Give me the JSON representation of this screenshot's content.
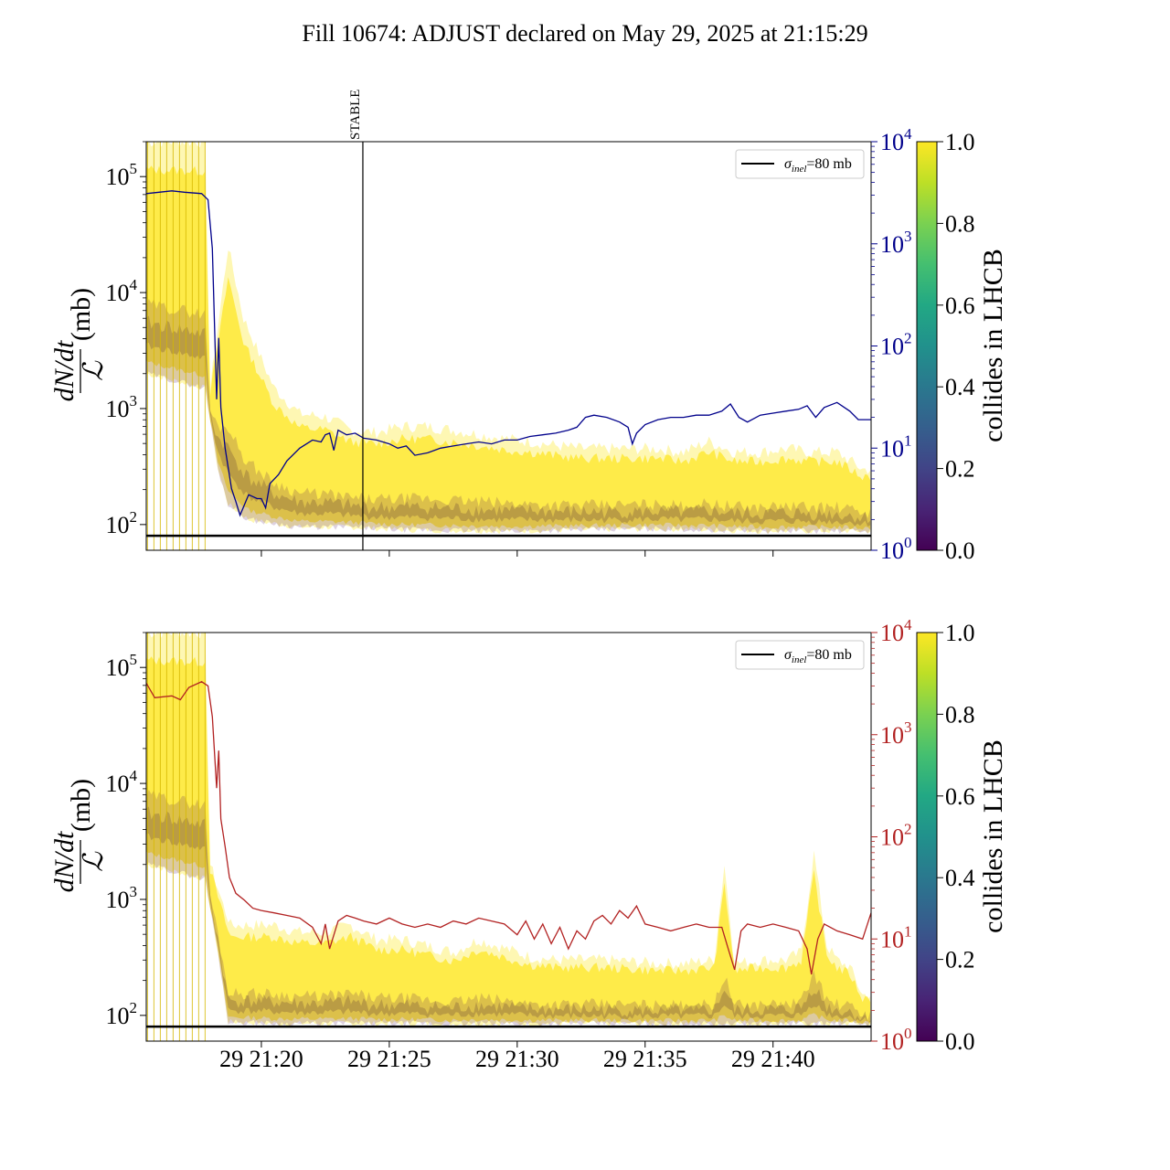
{
  "title": "Fill 10674: ADJUST declared on May 29, 2025 at 21:15:29",
  "chart_data": [
    {
      "type": "line",
      "panel": "top",
      "ylabel": "dN/dt / ℒ (mb)",
      "yscale": "log",
      "ylim": [
        60,
        200000
      ],
      "y_ticks": [
        {
          "exp": "2"
        },
        {
          "exp": "3"
        },
        {
          "exp": "4"
        },
        {
          "exp": "5"
        }
      ],
      "xlim": [
        "21:15:30",
        "21:43:50"
      ],
      "x_tick_minutes": [
        "21:20",
        "21:25",
        "21:30",
        "21:35",
        "21:40"
      ],
      "right_axis": {
        "scale": "log",
        "ylim": [
          1,
          10000
        ],
        "color": "#00008b",
        "ticks": [
          {
            "exp": "0"
          },
          {
            "exp": "1"
          },
          {
            "exp": "2"
          },
          {
            "exp": "3"
          },
          {
            "exp": "4"
          }
        ]
      },
      "vline": {
        "label": "STABLE",
        "time": "21:23:58"
      },
      "hline": {
        "value": 80
      },
      "legend": {
        "position": "upper right",
        "entry_symbol": "σ",
        "entry_sub": "inel",
        "entry_rest": "=80 mb"
      },
      "right_series": {
        "color": "#00008b",
        "points": [
          [
            "21:15:30",
            3100
          ],
          [
            "21:16:00",
            3200
          ],
          [
            "21:16:30",
            3300
          ],
          [
            "21:17:00",
            3200
          ],
          [
            "21:17:40",
            3100
          ],
          [
            "21:17:55",
            2700
          ],
          [
            "21:18:05",
            900
          ],
          [
            "21:18:15",
            30
          ],
          [
            "21:18:20",
            120
          ],
          [
            "21:18:25",
            25
          ],
          [
            "21:18:35",
            10
          ],
          [
            "21:18:50",
            4
          ],
          [
            "21:19:00",
            3
          ],
          [
            "21:19:10",
            2.2
          ],
          [
            "21:19:30",
            3.5
          ],
          [
            "21:19:50",
            3.2
          ],
          [
            "21:20:00",
            3.2
          ],
          [
            "21:20:10",
            2.6
          ],
          [
            "21:20:20",
            4.5
          ],
          [
            "21:20:40",
            5.5
          ],
          [
            "21:21:00",
            7.5
          ],
          [
            "21:21:30",
            10
          ],
          [
            "21:22:00",
            12
          ],
          [
            "21:22:20",
            11.5
          ],
          [
            "21:22:30",
            13.5
          ],
          [
            "21:22:40",
            14
          ],
          [
            "21:22:50",
            9.5
          ],
          [
            "21:23:00",
            15
          ],
          [
            "21:23:20",
            13.5
          ],
          [
            "21:23:40",
            14
          ],
          [
            "21:24:00",
            12.5
          ],
          [
            "21:24:30",
            12
          ],
          [
            "21:25:00",
            11
          ],
          [
            "21:25:20",
            10
          ],
          [
            "21:25:40",
            10.5
          ],
          [
            "21:26:00",
            8.5
          ],
          [
            "21:26:30",
            9
          ],
          [
            "21:27:00",
            10
          ],
          [
            "21:27:30",
            10.5
          ],
          [
            "21:28:00",
            11
          ],
          [
            "21:28:30",
            11.5
          ],
          [
            "21:29:00",
            11
          ],
          [
            "21:29:30",
            12
          ],
          [
            "21:30:00",
            12
          ],
          [
            "21:30:30",
            13
          ],
          [
            "21:31:00",
            13.5
          ],
          [
            "21:31:30",
            14
          ],
          [
            "21:32:00",
            15
          ],
          [
            "21:32:20",
            16
          ],
          [
            "21:32:40",
            20
          ],
          [
            "21:33:00",
            21
          ],
          [
            "21:33:30",
            20
          ],
          [
            "21:34:00",
            18
          ],
          [
            "21:34:20",
            16
          ],
          [
            "21:34:30",
            11
          ],
          [
            "21:34:40",
            14
          ],
          [
            "21:35:00",
            17
          ],
          [
            "21:35:30",
            19
          ],
          [
            "21:36:00",
            20
          ],
          [
            "21:36:30",
            20
          ],
          [
            "21:37:00",
            21
          ],
          [
            "21:37:30",
            21
          ],
          [
            "21:38:00",
            23
          ],
          [
            "21:38:20",
            27
          ],
          [
            "21:38:40",
            20
          ],
          [
            "21:39:00",
            18
          ],
          [
            "21:39:30",
            21
          ],
          [
            "21:40:00",
            22
          ],
          [
            "21:40:30",
            23
          ],
          [
            "21:41:00",
            24
          ],
          [
            "21:41:20",
            26
          ],
          [
            "21:41:40",
            20
          ],
          [
            "21:42:00",
            25
          ],
          [
            "21:42:30",
            28
          ],
          [
            "21:43:00",
            23
          ],
          [
            "21:43:20",
            19
          ],
          [
            "21:43:50",
            19
          ]
        ]
      },
      "band_envelope": {
        "lower": [
          [
            0,
            2000
          ],
          [
            2.3,
            1500
          ],
          [
            2.8,
            300
          ],
          [
            3.2,
            150
          ],
          [
            4,
            110
          ],
          [
            6,
            95
          ],
          [
            8,
            95
          ],
          [
            10,
            90
          ],
          [
            14,
            88
          ],
          [
            17,
            90
          ],
          [
            20,
            92
          ],
          [
            24,
            88
          ],
          [
            26,
            88
          ],
          [
            28,
            88
          ]
        ],
        "upper": [
          [
            0,
            200000
          ],
          [
            2.3,
            200000
          ],
          [
            2.5,
            1500
          ],
          [
            3.2,
            25000
          ],
          [
            3.8,
            6000
          ],
          [
            5,
            1500
          ],
          [
            6,
            900
          ],
          [
            7,
            850
          ],
          [
            8,
            650
          ],
          [
            9,
            620
          ],
          [
            10,
            700
          ],
          [
            11,
            700
          ],
          [
            12,
            650
          ],
          [
            13,
            600
          ],
          [
            14,
            550
          ],
          [
            15,
            520
          ],
          [
            16,
            480
          ],
          [
            17,
            450
          ],
          [
            18,
            450
          ],
          [
            19,
            450
          ],
          [
            20,
            450
          ],
          [
            21,
            420
          ],
          [
            22,
            520
          ],
          [
            23,
            420
          ],
          [
            24,
            420
          ],
          [
            25,
            450
          ],
          [
            26,
            420
          ],
          [
            27,
            420
          ],
          [
            28,
            300
          ]
        ]
      }
    },
    {
      "type": "line",
      "panel": "bottom",
      "ylabel": "dN/dt / ℒ (mb)",
      "yscale": "log",
      "ylim": [
        60,
        200000
      ],
      "y_ticks": [
        {
          "exp": "2"
        },
        {
          "exp": "3"
        },
        {
          "exp": "4"
        },
        {
          "exp": "5"
        }
      ],
      "xlim": [
        "21:15:30",
        "21:43:50"
      ],
      "x_tick_labels": [
        "29 21:20",
        "29 21:25",
        "29 21:30",
        "29 21:35",
        "29 21:40"
      ],
      "x_tick_minutes": [
        "21:20",
        "21:25",
        "21:30",
        "21:35",
        "21:40"
      ],
      "right_axis": {
        "scale": "log",
        "ylim": [
          1,
          10000
        ],
        "color": "#b22222",
        "ticks": [
          {
            "exp": "0"
          },
          {
            "exp": "1"
          },
          {
            "exp": "2"
          },
          {
            "exp": "3"
          },
          {
            "exp": "4"
          }
        ]
      },
      "hline": {
        "value": 80
      },
      "legend": {
        "position": "upper right",
        "entry_symbol": "σ",
        "entry_sub": "inel",
        "entry_rest": "=80 mb"
      },
      "right_series": {
        "color": "#b22222",
        "points": [
          [
            "21:15:30",
            3200
          ],
          [
            "21:15:50",
            2300
          ],
          [
            "21:16:30",
            2400
          ],
          [
            "21:16:50",
            2200
          ],
          [
            "21:17:10",
            2900
          ],
          [
            "21:17:40",
            3300
          ],
          [
            "21:17:55",
            3000
          ],
          [
            "21:18:05",
            1500
          ],
          [
            "21:18:15",
            300
          ],
          [
            "21:18:20",
            700
          ],
          [
            "21:18:25",
            150
          ],
          [
            "21:18:35",
            80
          ],
          [
            "21:18:45",
            40
          ],
          [
            "21:19:00",
            28
          ],
          [
            "21:19:20",
            24
          ],
          [
            "21:19:40",
            20
          ],
          [
            "21:20:00",
            19
          ],
          [
            "21:20:30",
            18
          ],
          [
            "21:21:00",
            17
          ],
          [
            "21:21:30",
            16
          ],
          [
            "21:22:00",
            13
          ],
          [
            "21:22:20",
            9
          ],
          [
            "21:22:30",
            14
          ],
          [
            "21:22:40",
            8
          ],
          [
            "21:23:00",
            15
          ],
          [
            "21:23:20",
            17
          ],
          [
            "21:23:40",
            16
          ],
          [
            "21:24:00",
            15
          ],
          [
            "21:24:30",
            14
          ],
          [
            "21:25:00",
            16
          ],
          [
            "21:25:30",
            14
          ],
          [
            "21:26:00",
            13
          ],
          [
            "21:26:30",
            14
          ],
          [
            "21:27:00",
            13
          ],
          [
            "21:27:30",
            15
          ],
          [
            "21:28:00",
            14
          ],
          [
            "21:28:30",
            16
          ],
          [
            "21:29:00",
            15
          ],
          [
            "21:29:30",
            14
          ],
          [
            "21:30:00",
            11
          ],
          [
            "21:30:20",
            15
          ],
          [
            "21:30:40",
            10
          ],
          [
            "21:31:00",
            14
          ],
          [
            "21:31:20",
            9
          ],
          [
            "21:31:40",
            13
          ],
          [
            "21:32:00",
            8
          ],
          [
            "21:32:20",
            12
          ],
          [
            "21:32:40",
            10
          ],
          [
            "21:33:00",
            15
          ],
          [
            "21:33:20",
            17
          ],
          [
            "21:33:40",
            14
          ],
          [
            "21:34:00",
            19
          ],
          [
            "21:34:20",
            16
          ],
          [
            "21:34:40",
            21
          ],
          [
            "21:35:00",
            14
          ],
          [
            "21:35:30",
            13
          ],
          [
            "21:36:00",
            12
          ],
          [
            "21:36:30",
            13
          ],
          [
            "21:37:00",
            14
          ],
          [
            "21:37:30",
            13
          ],
          [
            "21:38:00",
            13
          ],
          [
            "21:38:15",
            8
          ],
          [
            "21:38:30",
            5
          ],
          [
            "21:38:45",
            12
          ],
          [
            "21:39:00",
            14
          ],
          [
            "21:39:30",
            13
          ],
          [
            "21:40:00",
            14
          ],
          [
            "21:40:30",
            13
          ],
          [
            "21:41:00",
            12
          ],
          [
            "21:41:20",
            8
          ],
          [
            "21:41:30",
            4.5
          ],
          [
            "21:41:45",
            10
          ],
          [
            "21:42:00",
            14
          ],
          [
            "21:42:30",
            12
          ],
          [
            "21:43:00",
            11
          ],
          [
            "21:43:30",
            10
          ],
          [
            "21:43:50",
            18
          ]
        ]
      },
      "band_envelope": {
        "lower": [
          [
            0,
            2000
          ],
          [
            2.3,
            1500
          ],
          [
            2.8,
            350
          ],
          [
            3.2,
            88
          ],
          [
            5,
            85
          ],
          [
            10,
            85
          ],
          [
            15,
            85
          ],
          [
            20,
            85
          ],
          [
            25,
            85
          ],
          [
            28,
            85
          ]
        ],
        "upper": [
          [
            0,
            200000
          ],
          [
            2.3,
            200000
          ],
          [
            2.5,
            2000
          ],
          [
            3,
            900
          ],
          [
            3.3,
            600
          ],
          [
            5,
            600
          ],
          [
            6,
            520
          ],
          [
            7,
            520
          ],
          [
            8,
            600
          ],
          [
            9,
            450
          ],
          [
            10,
            450
          ],
          [
            12,
            350
          ],
          [
            13,
            450
          ],
          [
            15,
            320
          ],
          [
            16,
            300
          ],
          [
            18,
            300
          ],
          [
            20,
            280
          ],
          [
            21,
            280
          ],
          [
            22.2,
            300
          ],
          [
            22.6,
            2000
          ],
          [
            23,
            280
          ],
          [
            24,
            300
          ],
          [
            25,
            300
          ],
          [
            25.6,
            350
          ],
          [
            26.1,
            2500
          ],
          [
            26.6,
            400
          ],
          [
            27,
            300
          ],
          [
            27.5,
            260
          ],
          [
            28,
            150
          ]
        ]
      },
      "colorbar": {
        "label": "collides in LHCB",
        "ticks": [
          "0.0",
          "0.2",
          "0.4",
          "0.6",
          "0.8",
          "1.0"
        ]
      }
    }
  ],
  "stable_label": "STABLE",
  "colorbar_label": "collides in LHCB",
  "colorbar_ticks": [
    "0.0",
    "0.2",
    "0.4",
    "0.6",
    "0.8",
    "1.0"
  ],
  "ylabel_num": "dN/dt",
  "ylabel_den": "ℒ",
  "ylabel_unit": "(mb)",
  "legend_symbol": "σ",
  "legend_sub": "inel",
  "legend_rest": "=80 mb",
  "colors": {
    "top_axis": "#00008b",
    "bottom_axis": "#b22222",
    "band_yellow": "#fde725",
    "band_purple": "#440154"
  }
}
